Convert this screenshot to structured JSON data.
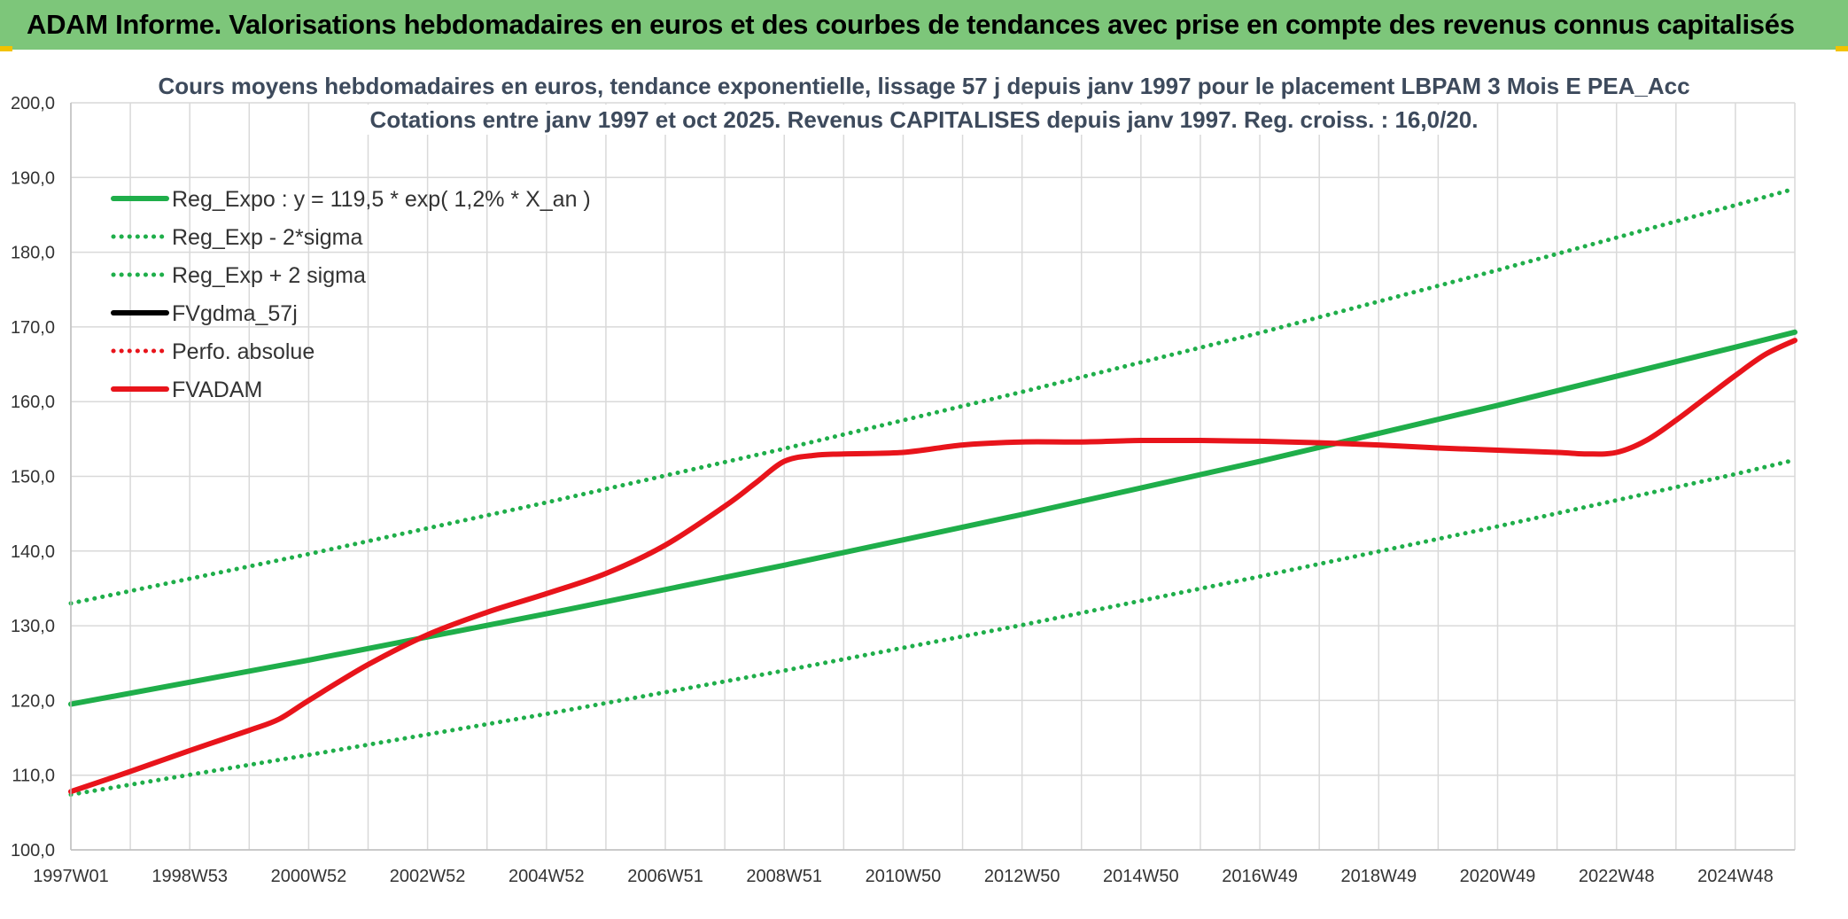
{
  "banner": {
    "title": "ADAM Informe. Valorisations hebdomadaires en euros et des courbes de tendances avec prise en compte des revenus connus capitalisés"
  },
  "colors": {
    "banner_bg": "#7dc67a",
    "green": "#1fae4a",
    "red": "#e8141b",
    "black": "#000000",
    "grid": "#d9d9d9",
    "corner": "#f2c200"
  },
  "chart_data": {
    "type": "line",
    "title": [
      "Cours moyens hebdomadaires en euros, tendance exponentielle, lissage 57 j depuis janv 1997 pour le placement LBPAM 3 Mois E PEA_Acc",
      "Cotations entre janv 1997 et oct 2025. Revenus CAPITALISES depuis janv 1997. Reg. croiss. : 16,0/20."
    ],
    "ylim": [
      100,
      200
    ],
    "xlim": [
      1997.0,
      2026.0
    ],
    "y_ticks": [
      "100,0",
      "110,0",
      "120,0",
      "130,0",
      "140,0",
      "150,0",
      "160,0",
      "170,0",
      "180,0",
      "190,0",
      "200,0"
    ],
    "x_ticks": [
      {
        "label": "1997W01",
        "x": 1997.0
      },
      {
        "label": "1998W53",
        "x": 1999.0
      },
      {
        "label": "2000W52",
        "x": 2001.0
      },
      {
        "label": "2002W52",
        "x": 2003.0
      },
      {
        "label": "2004W52",
        "x": 2005.0
      },
      {
        "label": "2006W51",
        "x": 2007.0
      },
      {
        "label": "2008W51",
        "x": 2009.0
      },
      {
        "label": "2010W50",
        "x": 2011.0
      },
      {
        "label": "2012W50",
        "x": 2013.0
      },
      {
        "label": "2014W50",
        "x": 2015.0
      },
      {
        "label": "2016W49",
        "x": 2017.0
      },
      {
        "label": "2018W49",
        "x": 2019.0
      },
      {
        "label": "2020W49",
        "x": 2021.0
      },
      {
        "label": "2022W48",
        "x": 2023.0
      },
      {
        "label": "2024W48",
        "x": 2025.0
      }
    ],
    "grid": true,
    "legend_position": "top-left",
    "series": [
      {
        "name": "Reg_Expo : y = 119,5 * exp( 1,2% *  X_an )",
        "style": "solid",
        "color": "#1fae4a",
        "x": [
          1997.0,
          2001.0,
          2005.0,
          2009.0,
          2013.0,
          2017.0,
          2021.0,
          2025.0,
          2026.0
        ],
        "y": [
          119.5,
          125.4,
          131.6,
          138.1,
          144.9,
          152.0,
          159.5,
          167.3,
          169.3
        ]
      },
      {
        "name": "Reg_Exp - 2*sigma",
        "style": "dotted",
        "color": "#1fae4a",
        "x": [
          1997.0,
          2001.0,
          2005.0,
          2009.0,
          2013.0,
          2017.0,
          2021.0,
          2025.0,
          2026.0
        ],
        "y": [
          107.4,
          112.7,
          118.2,
          124.0,
          130.1,
          136.6,
          143.3,
          150.3,
          152.2
        ]
      },
      {
        "name": "Reg_Exp + 2 sigma",
        "style": "dotted",
        "color": "#1fae4a",
        "x": [
          1997.0,
          2001.0,
          2005.0,
          2009.0,
          2013.0,
          2017.0,
          2021.0,
          2025.0,
          2026.0
        ],
        "y": [
          133.0,
          139.6,
          146.5,
          153.7,
          161.3,
          169.2,
          177.6,
          186.3,
          188.5
        ]
      },
      {
        "name": "FVgdma_57j",
        "style": "solid",
        "color": "#000000",
        "x": [],
        "y": []
      },
      {
        "name": "Perfo. absolue",
        "style": "dotted",
        "color": "#e8141b",
        "x": [],
        "y": []
      },
      {
        "name": "FVADAM",
        "style": "solid",
        "color": "#e8141b",
        "x": [
          1997.0,
          1998.0,
          1999.0,
          2000.0,
          2000.5,
          2001.0,
          2002.0,
          2003.0,
          2004.0,
          2005.0,
          2006.0,
          2007.0,
          2008.0,
          2008.5,
          2009.0,
          2009.5,
          2010.0,
          2011.0,
          2012.0,
          2013.0,
          2014.0,
          2015.0,
          2016.0,
          2017.0,
          2018.0,
          2019.0,
          2020.0,
          2021.0,
          2022.0,
          2022.5,
          2023.0,
          2023.5,
          2024.0,
          2024.5,
          2025.0,
          2025.5,
          2026.0
        ],
        "y": [
          107.8,
          110.5,
          113.3,
          116.0,
          117.5,
          120.0,
          124.8,
          128.8,
          131.8,
          134.3,
          137.0,
          140.8,
          146.0,
          149.0,
          152.0,
          152.8,
          153.0,
          153.2,
          154.2,
          154.6,
          154.6,
          154.8,
          154.8,
          154.7,
          154.5,
          154.2,
          153.8,
          153.5,
          153.2,
          153.0,
          153.2,
          154.8,
          157.5,
          160.5,
          163.5,
          166.3,
          168.2
        ]
      }
    ]
  }
}
